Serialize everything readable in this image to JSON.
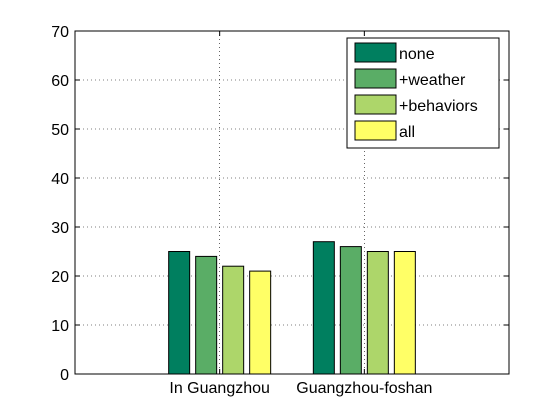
{
  "chart_data": {
    "type": "bar",
    "categories": [
      "In Guangzhou",
      "Guangzhou-foshan"
    ],
    "series": [
      {
        "name": "none",
        "color": "#007f5f",
        "values": [
          25,
          27
        ]
      },
      {
        "name": "+weather",
        "color": "#5aad66",
        "values": [
          24,
          26
        ]
      },
      {
        "name": "+behaviors",
        "color": "#add66a",
        "values": [
          22,
          25
        ]
      },
      {
        "name": "all",
        "color": "#ffff66",
        "values": [
          21,
          25
        ]
      }
    ],
    "y_ticks": [
      "0",
      "10",
      "20",
      "30",
      "40",
      "50",
      "60",
      "70"
    ],
    "ylim": [
      0,
      70
    ],
    "grid": true,
    "legend_position": "top-right",
    "title": "",
    "xlabel": "",
    "ylabel": ""
  }
}
